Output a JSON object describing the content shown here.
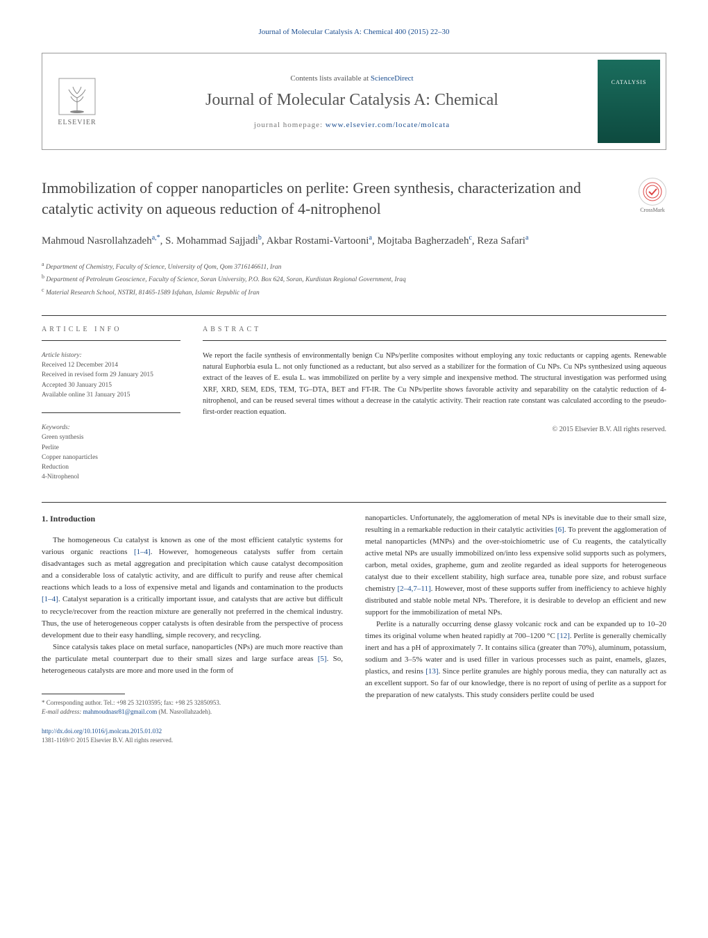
{
  "top_citation": "Journal of Molecular Catalysis A: Chemical 400 (2015) 22–30",
  "header": {
    "elsevier": "ELSEVIER",
    "contents_prefix": "Contents lists available at ",
    "contents_link": "ScienceDirect",
    "journal": "Journal of Molecular Catalysis A: Chemical",
    "homepage_prefix": "journal homepage: ",
    "homepage_url": "www.elsevier.com/locate/molcata",
    "cover_label": "CATALYSIS"
  },
  "crossmark": "CrossMark",
  "title": "Immobilization of copper nanoparticles on perlite: Green synthesis, characterization and catalytic activity on aqueous reduction of 4-nitrophenol",
  "authors_html": "Mahmoud Nasrollahzadeh|a,*|, S. Mohammad Sajjadi|b|, Akbar Rostami-Vartooni|a|, Mojtaba Bagherzadeh|c|, Reza Safari|a|",
  "affiliations": {
    "a": "Department of Chemistry, Faculty of Science, University of Qom, Qom 3716146611, Iran",
    "b": "Department of Petroleum Geoscience, Faculty of Science, Soran University, P.O. Box 624, Soran, Kurdistan Regional Government, Iraq",
    "c": "Material Research School, NSTRI, 81465-1589 Isfahan, Islamic Republic of Iran"
  },
  "article_info": {
    "label": "ARTICLE INFO",
    "history_title": "Article history:",
    "received": "Received 12 December 2014",
    "revised": "Received in revised form 29 January 2015",
    "accepted": "Accepted 30 January 2015",
    "online": "Available online 31 January 2015",
    "keywords_title": "Keywords:",
    "keywords": [
      "Green synthesis",
      "Perlite",
      "Copper nanoparticles",
      "Reduction",
      "4-Nitrophenol"
    ]
  },
  "abstract": {
    "label": "ABSTRACT",
    "text": "We report the facile synthesis of environmentally benign Cu NPs/perlite composites without employing any toxic reductants or capping agents. Renewable natural Euphorbia esula L. not only functioned as a reductant, but also served as a stabilizer for the formation of Cu NPs. Cu NPs synthesized using aqueous extract of the leaves of E. esula L. was immobilized on perlite by a very simple and inexpensive method. The structural investigation was performed using XRF, XRD, SEM, EDS, TEM, TG–DTA, BET and FT-IR. The Cu NPs/perlite shows favorable activity and separability on the catalytic reduction of 4-nitrophenol, and can be reused several times without a decrease in the catalytic activity. Their reaction rate constant was calculated according to the pseudo-first-order reaction equation.",
    "copyright": "© 2015 Elsevier B.V. All rights reserved."
  },
  "intro": {
    "heading": "1. Introduction",
    "p1a": "The homogeneous Cu catalyst is known as one of the most efficient catalytic systems for various organic reactions ",
    "p1ref1": "[1–4]",
    "p1b": ". However, homogeneous catalysts suffer from certain disadvantages such as metal aggregation and precipitation which cause catalyst decomposition and a considerable loss of catalytic activity, and are difficult to purify and reuse after chemical reactions which leads to a loss of expensive metal and ligands and contamination to the products ",
    "p1ref2": "[1–4]",
    "p1c": ". Catalyst separation is a critically important issue, and catalysts that are active but difficult to recycle/recover from the reaction mixture are generally not preferred in the chemical industry. Thus, the use of heterogeneous copper catalysts is often desirable from the perspective of process development due to their easy handling, simple recovery, and recycling.",
    "p2a": "Since catalysis takes place on metal surface, nanoparticles (NPs) are much more reactive than the particulate metal counterpart due to their small sizes and large surface areas ",
    "p2ref1": "[5]",
    "p2b": ". So, heterogeneous catalysts are more and more used in the form of",
    "p3a": "nanoparticles. Unfortunately, the agglomeration of metal NPs is inevitable due to their small size, resulting in a remarkable reduction in their catalytic activities ",
    "p3ref1": "[6]",
    "p3b": ". To prevent the agglomeration of metal nanoparticles (MNPs) and the over-stoichiometric use of Cu reagents, the catalytically active metal NPs are usually immobilized on/into less expensive solid supports such as polymers, carbon, metal oxides, grapheme, gum and zeolite regarded as ideal supports for heterogeneous catalyst due to their excellent stability, high surface area, tunable pore size, and robust surface chemistry ",
    "p3ref2": "[2–4,7–11]",
    "p3c": ". However, most of these supports suffer from inefficiency to achieve highly distributed and stable noble metal NPs. Therefore, it is desirable to develop an efficient and new support for the immobilization of metal NPs.",
    "p4a": "Perlite is a naturally occurring dense glassy volcanic rock and can be expanded up to 10–20 times its original volume when heated rapidly at 700–1200 °C ",
    "p4ref1": "[12]",
    "p4b": ". Perlite is generally chemically inert and has a pH of approximately 7. It contains silica (greater than 70%), aluminum, potassium, sodium and 3–5% water and is used filler in various processes such as paint, enamels, glazes, plastics, and resins ",
    "p4ref2": "[13]",
    "p4c": ". Since perlite granules are highly porous media, they can naturally act as an excellent support. So far of our knowledge, there is no report of using of perlite as a support for the preparation of new catalysts. This study considers perlite could be used"
  },
  "footnote": {
    "corr": "Corresponding author. Tel.: +98 25 32103595; fax: +98 25 32850953.",
    "email_label": "E-mail address: ",
    "email": "mahmoudnasr81@gmail.com",
    "email_suffix": " (M. Nasrollahzadeh)."
  },
  "doi": {
    "url": "http://dx.doi.org/10.1016/j.molcata.2015.01.032",
    "issn": "1381-1169/© 2015 Elsevier B.V. All rights reserved."
  },
  "colors": {
    "link": "#1a4d8f",
    "text": "#333333",
    "muted": "#555555",
    "cover_bg_top": "#1a6d5d",
    "cover_bg_bottom": "#0d4a3f"
  }
}
